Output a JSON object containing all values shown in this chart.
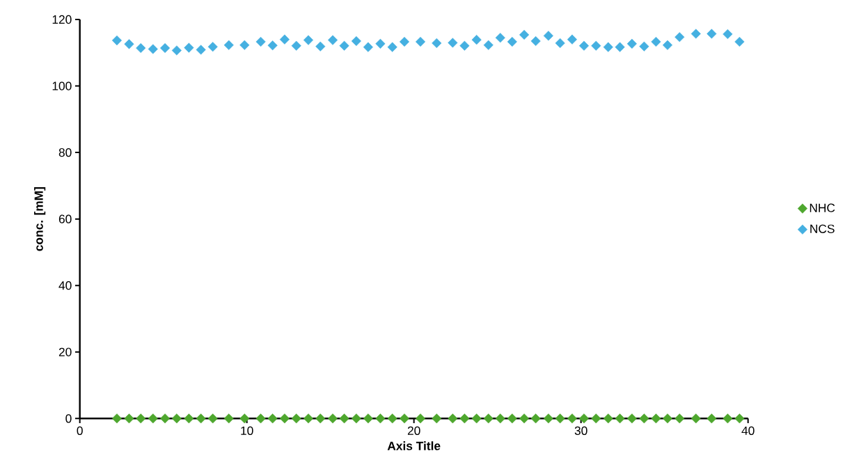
{
  "chart_data": {
    "type": "scatter",
    "xlabel": "Axis Title",
    "ylabel": "conc. [mM]",
    "x": [
      2.22,
      2.95,
      3.65,
      4.38,
      5.1,
      5.8,
      6.53,
      7.25,
      7.96,
      8.92,
      9.86,
      10.83,
      11.54,
      12.26,
      12.96,
      13.68,
      14.4,
      15.14,
      15.83,
      16.55,
      17.26,
      17.99,
      18.71,
      19.43,
      20.39,
      21.36,
      22.32,
      23.03,
      23.75,
      24.46,
      25.17,
      25.88,
      26.6,
      27.29,
      28.05,
      28.75,
      29.47,
      30.18,
      30.9,
      31.63,
      32.33,
      33.05,
      33.78,
      34.49,
      35.18,
      35.9,
      36.88,
      37.82,
      38.78,
      39.49
    ],
    "series": [
      {
        "name": "NHC",
        "color": "#4ea72e",
        "values": [
          0,
          0,
          0,
          0,
          0,
          0,
          0,
          0,
          0,
          0,
          0,
          0,
          0,
          0,
          0,
          0,
          0,
          0,
          0,
          0,
          0,
          0,
          0,
          0,
          0,
          0,
          0,
          0,
          0,
          0,
          0,
          0,
          0,
          0,
          0,
          0,
          0,
          0,
          0,
          0,
          0,
          0,
          0,
          0,
          0,
          0,
          0,
          0,
          0,
          0
        ]
      },
      {
        "name": "NCS",
        "color": "#45b0e1",
        "values": [
          113.7,
          112.6,
          111.4,
          111.1,
          111.4,
          110.7,
          111.5,
          110.9,
          111.8,
          112.3,
          112.3,
          113.3,
          112.2,
          114.0,
          112.1,
          113.8,
          111.9,
          113.8,
          112.1,
          113.5,
          111.7,
          112.7,
          111.7,
          113.3,
          113.3,
          112.9,
          113.0,
          112.1,
          113.9,
          112.3,
          114.5,
          113.3,
          115.4,
          113.5,
          115.1,
          112.9,
          114.0,
          112.1,
          112.1,
          111.7,
          111.7,
          112.7,
          111.9,
          113.3,
          112.3,
          114.7,
          115.7,
          115.7,
          115.6,
          113.3
        ]
      }
    ],
    "xlim": [
      0,
      40
    ],
    "xticks": [
      0,
      10,
      20,
      30,
      40
    ],
    "ylim": [
      0,
      120
    ],
    "yticks": [
      0,
      20,
      40,
      60,
      80,
      100,
      120
    ],
    "marker": "diamond",
    "legend": "right"
  }
}
